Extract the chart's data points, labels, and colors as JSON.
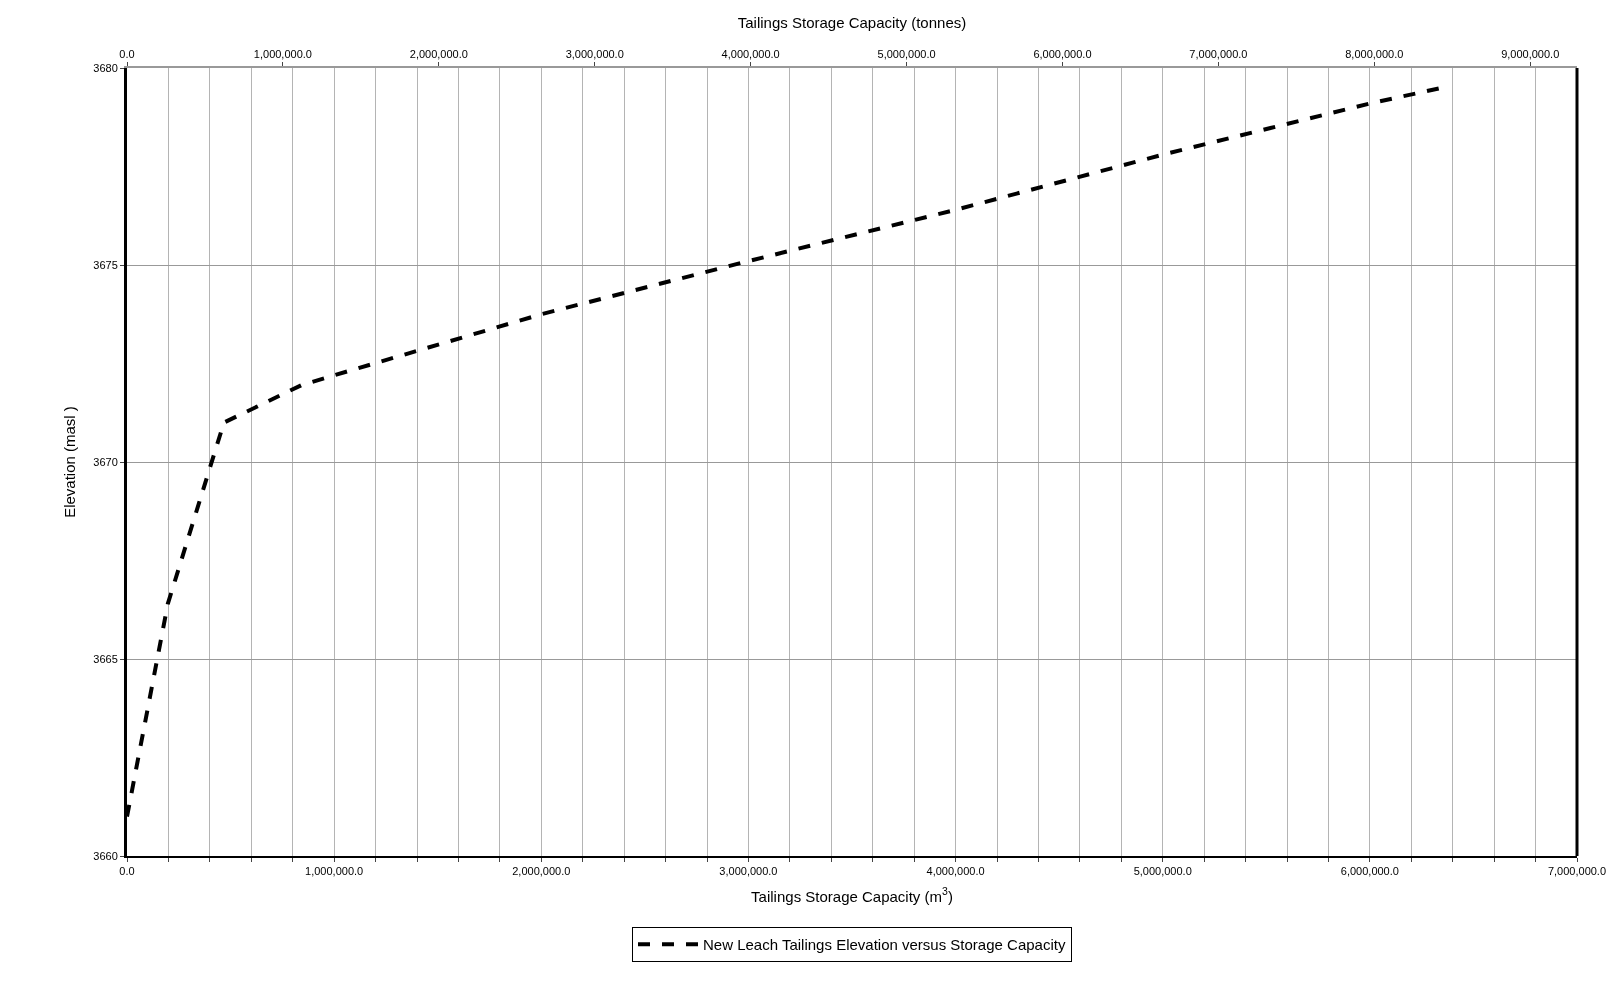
{
  "chart_data": {
    "type": "line",
    "xlabel": "Tailings Storage Capacity (m$^{3}$)",
    "x2label": "Tailings Storage Capacity (tonnes)",
    "ylabel": "Elevation (masl )",
    "x": [
      0,
      197000,
      403000,
      468000,
      842000,
      1000000,
      2000000,
      3000000,
      4000000,
      5000000,
      6000000,
      6350000
    ],
    "series": [
      {
        "name": "New Leach Tailings Elevation versus Storage Capacity",
        "color": "#000000",
        "values": [
          3661.0,
          3666.4,
          3669.9,
          3671.0,
          3671.95,
          3672.2,
          3673.75,
          3675.1,
          3676.4,
          3677.8,
          3679.1,
          3679.5
        ]
      }
    ],
    "xlim": [
      0,
      7000000
    ],
    "xticks": [
      {
        "value": 0,
        "label": "0.0"
      },
      {
        "value": 200000,
        "label": null
      },
      {
        "value": 400000,
        "label": null
      },
      {
        "value": 600000,
        "label": null
      },
      {
        "value": 800000,
        "label": null
      },
      {
        "value": 1000000,
        "label": "1,000,000.0"
      },
      {
        "value": 1200000,
        "label": null
      },
      {
        "value": 1400000,
        "label": null
      },
      {
        "value": 1600000,
        "label": null
      },
      {
        "value": 1800000,
        "label": null
      },
      {
        "value": 2000000,
        "label": "2,000,000.0"
      },
      {
        "value": 2200000,
        "label": null
      },
      {
        "value": 2400000,
        "label": null
      },
      {
        "value": 2600000,
        "label": null
      },
      {
        "value": 2800000,
        "label": null
      },
      {
        "value": 3000000,
        "label": "3,000,000.0"
      },
      {
        "value": 3200000,
        "label": null
      },
      {
        "value": 3400000,
        "label": null
      },
      {
        "value": 3600000,
        "label": null
      },
      {
        "value": 3800000,
        "label": null
      },
      {
        "value": 4000000,
        "label": "4,000,000.0"
      },
      {
        "value": 4200000,
        "label": null
      },
      {
        "value": 4400000,
        "label": null
      },
      {
        "value": 4600000,
        "label": null
      },
      {
        "value": 4800000,
        "label": null
      },
      {
        "value": 5000000,
        "label": "5,000,000.0"
      },
      {
        "value": 5200000,
        "label": null
      },
      {
        "value": 5400000,
        "label": null
      },
      {
        "value": 5600000,
        "label": null
      },
      {
        "value": 5800000,
        "label": null
      },
      {
        "value": 6000000,
        "label": "6,000,000.0"
      },
      {
        "value": 6200000,
        "label": null
      },
      {
        "value": 6400000,
        "label": null
      },
      {
        "value": 6600000,
        "label": null
      },
      {
        "value": 6800000,
        "label": null
      },
      {
        "value": 7000000,
        "label": "7,000,000.0"
      }
    ],
    "x2lim": [
      0,
      9300000
    ],
    "x2ticks": [
      {
        "value": 0,
        "label": "0.0"
      },
      {
        "value": 1000000,
        "label": "1,000,000.0"
      },
      {
        "value": 2000000,
        "label": "2,000,000.0"
      },
      {
        "value": 3000000,
        "label": "3,000,000.0"
      },
      {
        "value": 4000000,
        "label": "4,000,000.0"
      },
      {
        "value": 5000000,
        "label": "5,000,000.0"
      },
      {
        "value": 6000000,
        "label": "6,000,000.0"
      },
      {
        "value": 7000000,
        "label": "7,000,000.0"
      },
      {
        "value": 8000000,
        "label": "8,000,000.0"
      },
      {
        "value": 9000000,
        "label": "9,000,000.0"
      }
    ],
    "ylim": [
      3660,
      3680
    ],
    "yticks": [
      3660,
      3665,
      3670,
      3675,
      3680
    ],
    "grid": true,
    "legend": "bottom",
    "marker": "none",
    "line_style": "dashed"
  }
}
